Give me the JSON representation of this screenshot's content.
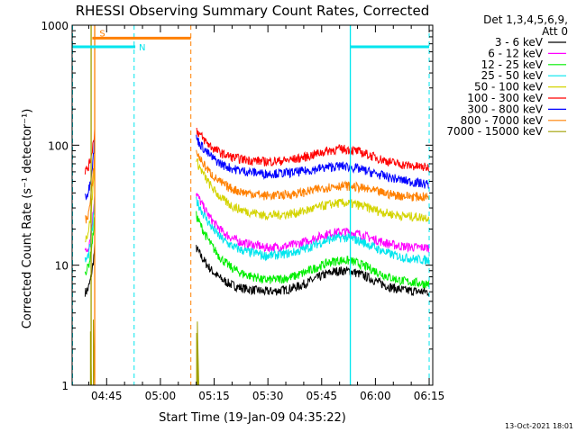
{
  "chart_data": {
    "type": "line",
    "title": "RHESSI Observing Summary Count Rates, Corrected",
    "xlabel": "Start Time (19-Jan-09 04:35:22)",
    "ylabel": "Corrected Count Rate (s⁻¹ detector⁻¹)",
    "yscale": "log",
    "ylim": [
      1,
      1000
    ],
    "xlim": [
      "04:35:22",
      "06:16:00"
    ],
    "x_ticks": [
      "04:45",
      "05:00",
      "05:15",
      "05:30",
      "05:45",
      "06:00",
      "06:15"
    ],
    "y_ticks": [
      "1",
      "10",
      "100",
      "1000"
    ],
    "legend_header": [
      "Det 1,3,4,5,6,9,",
      "Att 0"
    ],
    "legend_position": "right",
    "footer": "13-Oct-2021 18:01",
    "markers": [
      {
        "label": "S",
        "color": "#ff8000",
        "start": "04:41:00",
        "end": "05:08:30",
        "level": 780
      },
      {
        "label": "N",
        "color": "#00e5ee",
        "start": "04:35:22",
        "end": "04:53:00",
        "level": 660
      },
      {
        "label": "",
        "color": "#00e5ee",
        "start": "05:53:00",
        "end": "06:15:00",
        "level": 660
      }
    ],
    "vlines": [
      {
        "time": "04:35:30",
        "color": "#00e5ee",
        "style": "dashed"
      },
      {
        "time": "04:52:40",
        "color": "#00e5ee",
        "style": "dashed"
      },
      {
        "time": "05:08:30",
        "color": "#ff8000",
        "style": "dashed"
      },
      {
        "time": "06:15:00",
        "color": "#00e5ee",
        "style": "dashed"
      },
      {
        "time": "04:40:40",
        "color": "#a0a000",
        "style": "solid"
      },
      {
        "time": "04:41:40",
        "color": "#ff8000",
        "style": "solid"
      },
      {
        "time": "05:53:00",
        "color": "#00e5ee",
        "style": "solid"
      }
    ],
    "segments": [
      [
        "04:39:00",
        "04:41:40"
      ],
      [
        "05:10:00",
        "06:15:00"
      ]
    ],
    "series": [
      {
        "name": "3 - 6 keV",
        "color": "#000000",
        "start": 6,
        "flare_peak": 14,
        "plateau": 6,
        "hump": 9,
        "end": 6
      },
      {
        "name": "6 - 12 keV",
        "color": "#ff00ff",
        "start": 13,
        "flare_peak": 40,
        "plateau": 14,
        "hump": 19,
        "end": 14
      },
      {
        "name": "12 - 25 keV",
        "color": "#00ee00",
        "start": 9,
        "flare_peak": 26,
        "plateau": 7.5,
        "hump": 11,
        "end": 7
      },
      {
        "name": "25 - 50 keV",
        "color": "#00e5ee",
        "start": 11,
        "flare_peak": 35,
        "plateau": 12,
        "hump": 17,
        "end": 11
      },
      {
        "name": "50 - 100 keV",
        "color": "#d4d400",
        "start": 17,
        "flare_peak": 75,
        "plateau": 26,
        "hump": 33,
        "end": 25
      },
      {
        "name": "100 - 300 keV",
        "color": "#ff0000",
        "start": 62,
        "flare_peak": 135,
        "plateau": 73,
        "hump": 93,
        "end": 65
      },
      {
        "name": "300 - 800 keV",
        "color": "#0000ff",
        "start": 38,
        "flare_peak": 115,
        "plateau": 58,
        "hump": 67,
        "end": 47
      },
      {
        "name": "800 - 7000 keV",
        "color": "#ff8000",
        "start": 24,
        "flare_peak": 88,
        "plateau": 38,
        "hump": 46,
        "end": 37
      },
      {
        "name": "7000 - 15000 keV",
        "color": "#a0a000",
        "start": 1,
        "flare_peak": 3.8,
        "plateau": 1,
        "hump": 1,
        "end": 1
      }
    ]
  }
}
